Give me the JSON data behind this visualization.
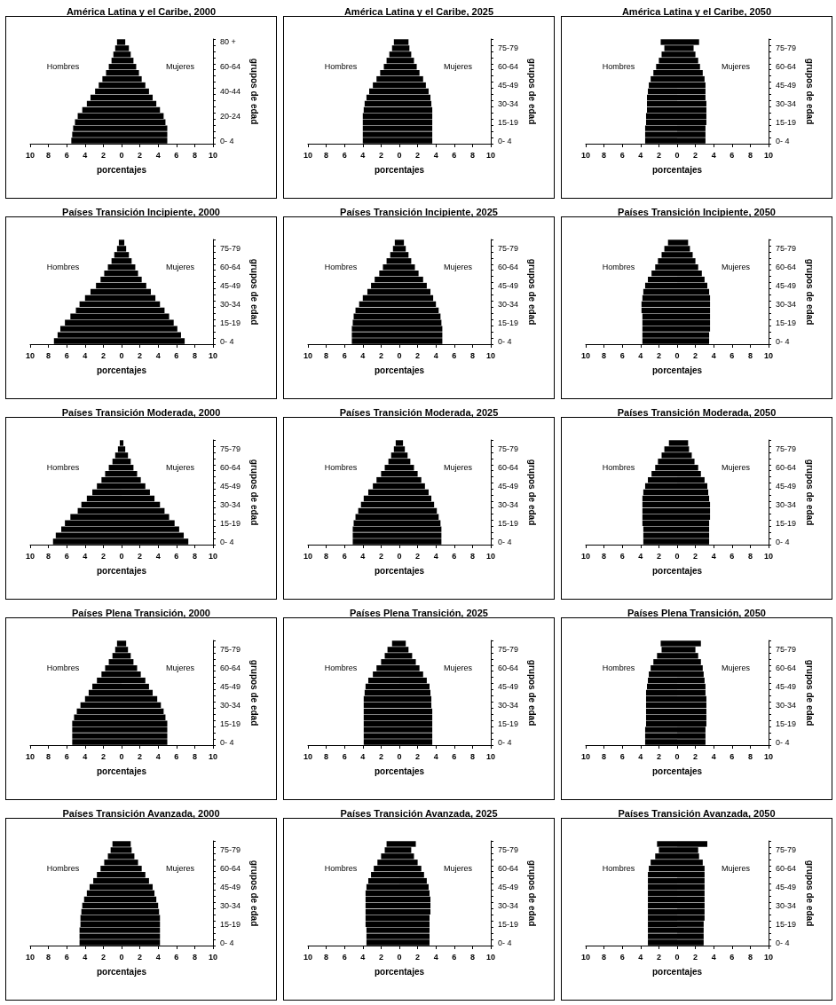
{
  "chart_data": [
    {
      "type": "bar",
      "orientation": "horizontal",
      "stacked": true,
      "title": "América Latina y el Caribe, 2000",
      "xlabel": "porcentajes",
      "ylabel": "grupos de edad",
      "categories": [
        "80 +",
        null,
        null,
        null,
        "60-64",
        null,
        null,
        null,
        "40-44",
        null,
        null,
        null,
        "20-24",
        null,
        null,
        null,
        "0- 4"
      ],
      "xlim": [
        -10,
        10
      ],
      "xticks": [
        {
          "value": -10,
          "label": "10"
        },
        {
          "value": -8,
          "label": "8"
        },
        {
          "value": -6,
          "label": "6"
        },
        {
          "value": -4,
          "label": "4"
        },
        {
          "value": -2,
          "label": "2"
        },
        0,
        2,
        4,
        6,
        8,
        10
      ],
      "series": [
        {
          "name": "Hombres",
          "color": "#000000",
          "values": [
            -0.5,
            -0.7,
            -0.9,
            -1.1,
            -1.4,
            -1.7,
            -2.1,
            -2.5,
            -2.9,
            -3.4,
            -3.8,
            -4.3,
            -4.8,
            -5.1,
            -5.3,
            -5.4,
            -5.5
          ]
        },
        {
          "name": "Mujeres",
          "color": "#000000",
          "values": [
            0.4,
            0.8,
            1.0,
            1.3,
            1.6,
            1.9,
            2.2,
            2.6,
            3.0,
            3.4,
            3.8,
            4.2,
            4.6,
            4.8,
            5.0,
            5.0,
            5.0
          ]
        }
      ]
    },
    {
      "type": "bar",
      "orientation": "horizontal",
      "stacked": true,
      "title": "América Latina y el Caribe, 2025",
      "xlabel": "porcentajes",
      "ylabel": "grupos de edad",
      "categories": [
        null,
        "75-79",
        null,
        null,
        "60-64",
        null,
        null,
        "45-49",
        null,
        null,
        "30-34",
        null,
        null,
        "15-19",
        null,
        null,
        "0- 4"
      ],
      "xlim": [
        -10,
        10
      ],
      "xticks": [
        {
          "value": -10,
          "label": "10"
        },
        {
          "value": -8,
          "label": "8"
        },
        {
          "value": -6,
          "label": "6"
        },
        {
          "value": -4,
          "label": "4"
        },
        {
          "value": -2,
          "label": "2"
        },
        0,
        2,
        4,
        6,
        8,
        10
      ],
      "series": [
        {
          "name": "Hombres",
          "color": "#000000",
          "values": [
            -0.6,
            -0.8,
            -1.1,
            -1.4,
            -1.7,
            -2.1,
            -2.5,
            -2.9,
            -3.3,
            -3.6,
            -3.8,
            -3.9,
            -4.0,
            -4.0,
            -4.0,
            -4.0,
            -4.0
          ]
        },
        {
          "name": "Mujeres",
          "color": "#000000",
          "values": [
            1.0,
            1.1,
            1.3,
            1.6,
            1.9,
            2.2,
            2.6,
            2.9,
            3.2,
            3.4,
            3.5,
            3.6,
            3.6,
            3.6,
            3.6,
            3.6,
            3.6
          ]
        }
      ]
    },
    {
      "type": "bar",
      "orientation": "horizontal",
      "stacked": true,
      "title": "América Latina y el Caribe, 2050",
      "xlabel": "porcentajes",
      "ylabel": "grupos de edad",
      "categories": [
        null,
        "75-79",
        null,
        null,
        "60-64",
        null,
        null,
        "45-49",
        null,
        null,
        "30-34",
        null,
        null,
        "15-19",
        null,
        null,
        "0- 4"
      ],
      "xlim": [
        -10,
        10
      ],
      "xticks": [
        {
          "value": -10,
          "label": "10"
        },
        {
          "value": -8,
          "label": "8"
        },
        {
          "value": -6,
          "label": "6"
        },
        {
          "value": -4,
          "label": "4"
        },
        {
          "value": -2,
          "label": "2"
        },
        0,
        2,
        4,
        6,
        8,
        10
      ],
      "series": [
        {
          "name": "Hombres",
          "color": "#000000",
          "values": [
            -1.8,
            -1.4,
            -1.7,
            -2.0,
            -2.3,
            -2.6,
            -2.9,
            -3.1,
            -3.2,
            -3.3,
            -3.3,
            -3.3,
            -3.4,
            -3.4,
            -3.5,
            -3.5,
            -3.5
          ]
        },
        {
          "name": "Mujeres",
          "color": "#000000",
          "values": [
            2.4,
            1.8,
            2.0,
            2.3,
            2.5,
            2.8,
            3.0,
            3.1,
            3.1,
            3.1,
            3.2,
            3.2,
            3.2,
            3.2,
            3.1,
            3.1,
            3.1
          ]
        }
      ]
    },
    {
      "type": "bar",
      "orientation": "horizontal",
      "stacked": true,
      "title": "Países Transición Incipiente, 2000",
      "xlabel": "porcentajes",
      "ylabel": "grupos de edad",
      "categories": [
        null,
        "75-79",
        null,
        null,
        "60-64",
        null,
        null,
        "45-49",
        null,
        null,
        "30-34",
        null,
        null,
        "15-19",
        null,
        null,
        "0- 4"
      ],
      "xlim": [
        -10,
        10
      ],
      "xticks": [
        {
          "value": -10,
          "label": "10"
        },
        {
          "value": -8,
          "label": "8"
        },
        {
          "value": -6,
          "label": "6"
        },
        {
          "value": -4,
          "label": "4"
        },
        {
          "value": -2,
          "label": "2"
        },
        0,
        2,
        4,
        6,
        8,
        10
      ],
      "series": [
        {
          "name": "Hombres",
          "color": "#000000",
          "values": [
            -0.3,
            -0.5,
            -0.8,
            -1.1,
            -1.5,
            -1.9,
            -2.3,
            -2.8,
            -3.4,
            -4.0,
            -4.6,
            -5.0,
            -5.6,
            -6.2,
            -6.7,
            -7.0,
            -7.4
          ]
        },
        {
          "name": "Mujeres",
          "color": "#000000",
          "values": [
            0.3,
            0.5,
            0.8,
            1.1,
            1.5,
            1.8,
            2.2,
            2.7,
            3.2,
            3.7,
            4.2,
            4.7,
            5.2,
            5.7,
            6.1,
            6.5,
            6.9
          ]
        }
      ]
    },
    {
      "type": "bar",
      "orientation": "horizontal",
      "stacked": true,
      "title": "Países Transición Incipiente, 2025",
      "xlabel": "porcentajes",
      "ylabel": "grupos de edad",
      "categories": [
        null,
        "75-79",
        null,
        null,
        "60-64",
        null,
        null,
        "45-49",
        null,
        null,
        "30-34",
        null,
        null,
        "15-19",
        null,
        null,
        "0- 4"
      ],
      "xlim": [
        -10,
        10
      ],
      "xticks": [
        {
          "value": -10,
          "label": "10"
        },
        {
          "value": -8,
          "label": "8"
        },
        {
          "value": -6,
          "label": "6"
        },
        {
          "value": -4,
          "label": "4"
        },
        {
          "value": -2,
          "label": "2"
        },
        0,
        2,
        4,
        6,
        8,
        10
      ],
      "series": [
        {
          "name": "Hombres",
          "color": "#000000",
          "values": [
            -0.5,
            -0.7,
            -1.0,
            -1.4,
            -1.8,
            -2.2,
            -2.7,
            -3.1,
            -3.5,
            -4.0,
            -4.4,
            -4.8,
            -5.0,
            -5.1,
            -5.2,
            -5.2,
            -5.2
          ]
        },
        {
          "name": "Mujeres",
          "color": "#000000",
          "values": [
            0.5,
            0.7,
            1.0,
            1.3,
            1.7,
            2.1,
            2.6,
            3.0,
            3.4,
            3.7,
            4.0,
            4.3,
            4.5,
            4.6,
            4.7,
            4.7,
            4.7
          ]
        }
      ]
    },
    {
      "type": "bar",
      "orientation": "horizontal",
      "stacked": true,
      "title": "Países Transición Incipiente, 2050",
      "xlabel": "porcentajes",
      "ylabel": "grupos de edad",
      "categories": [
        null,
        "75-79",
        null,
        null,
        "60-64",
        null,
        null,
        "45-49",
        null,
        null,
        "30-34",
        null,
        null,
        "15-19",
        null,
        null,
        "0- 4"
      ],
      "xlim": [
        -10,
        10
      ],
      "xticks": [
        {
          "value": -10,
          "label": "10"
        },
        {
          "value": -8,
          "label": "8"
        },
        {
          "value": -6,
          "label": "6"
        },
        {
          "value": -4,
          "label": "4"
        },
        {
          "value": -2,
          "label": "2"
        },
        0,
        2,
        4,
        6,
        8,
        10
      ],
      "series": [
        {
          "name": "Hombres",
          "color": "#000000",
          "values": [
            -1.0,
            -1.4,
            -1.7,
            -2.1,
            -2.4,
            -2.8,
            -3.2,
            -3.5,
            -3.7,
            -3.8,
            -3.9,
            -3.9,
            -3.8,
            -3.8,
            -3.8,
            -3.8,
            -3.8
          ]
        },
        {
          "name": "Mujeres",
          "color": "#000000",
          "values": [
            1.2,
            1.4,
            1.7,
            2.0,
            2.3,
            2.7,
            3.0,
            3.3,
            3.5,
            3.6,
            3.6,
            3.6,
            3.6,
            3.6,
            3.6,
            3.5,
            3.5
          ]
        }
      ]
    },
    {
      "type": "bar",
      "orientation": "horizontal",
      "stacked": true,
      "title": "Países Transición Moderada, 2000",
      "xlabel": "porcentajes",
      "ylabel": "grupos de edad",
      "categories": [
        null,
        "75-79",
        null,
        null,
        "60-64",
        null,
        null,
        "45-49",
        null,
        null,
        "30-34",
        null,
        null,
        "15-19",
        null,
        null,
        "0- 4"
      ],
      "xlim": [
        -10,
        10
      ],
      "xticks": [
        {
          "value": -10,
          "label": "10"
        },
        {
          "value": -8,
          "label": "8"
        },
        {
          "value": -6,
          "label": "6"
        },
        {
          "value": -4,
          "label": "4"
        },
        {
          "value": -2,
          "label": "2"
        },
        0,
        2,
        4,
        6,
        8,
        10
      ],
      "series": [
        {
          "name": "Hombres",
          "color": "#000000",
          "values": [
            -0.2,
            -0.4,
            -0.7,
            -1.0,
            -1.4,
            -1.8,
            -2.2,
            -2.7,
            -3.2,
            -3.8,
            -4.4,
            -4.8,
            -5.6,
            -6.2,
            -6.6,
            -7.2,
            -7.5
          ]
        },
        {
          "name": "Mujeres",
          "color": "#000000",
          "values": [
            0.2,
            0.4,
            0.7,
            1.0,
            1.3,
            1.7,
            2.1,
            2.6,
            3.1,
            3.6,
            4.2,
            4.7,
            5.2,
            5.8,
            6.3,
            6.8,
            7.3
          ]
        }
      ]
    },
    {
      "type": "bar",
      "orientation": "horizontal",
      "stacked": true,
      "title": "Países Transición Moderada, 2025",
      "xlabel": "porcentajes",
      "ylabel": "grupos de edad",
      "categories": [
        null,
        "75-79",
        null,
        null,
        "60-64",
        null,
        null,
        "45-49",
        null,
        null,
        "30-34",
        null,
        null,
        "15-19",
        null,
        null,
        "0- 4"
      ],
      "xlim": [
        -10,
        10
      ],
      "xticks": [
        {
          "value": -10,
          "label": "10"
        },
        {
          "value": -8,
          "label": "8"
        },
        {
          "value": -6,
          "label": "6"
        },
        {
          "value": -4,
          "label": "4"
        },
        {
          "value": -2,
          "label": "2"
        },
        0,
        2,
        4,
        6,
        8,
        10
      ],
      "series": [
        {
          "name": "Hombres",
          "color": "#000000",
          "values": [
            -0.4,
            -0.6,
            -0.9,
            -1.2,
            -1.6,
            -2.0,
            -2.5,
            -2.9,
            -3.4,
            -3.9,
            -4.2,
            -4.5,
            -4.8,
            -5.0,
            -5.1,
            -5.1,
            -5.1
          ]
        },
        {
          "name": "Mujeres",
          "color": "#000000",
          "values": [
            0.4,
            0.6,
            0.9,
            1.2,
            1.6,
            2.0,
            2.4,
            2.8,
            3.2,
            3.5,
            3.8,
            4.1,
            4.3,
            4.5,
            4.6,
            4.6,
            4.6
          ]
        }
      ]
    },
    {
      "type": "bar",
      "orientation": "horizontal",
      "stacked": true,
      "title": "Países Transición Moderada, 2050",
      "xlabel": "porcentajes",
      "ylabel": "grupos de edad",
      "categories": [
        null,
        "75-79",
        null,
        null,
        "60-64",
        null,
        null,
        "45-49",
        null,
        null,
        "30-34",
        null,
        null,
        "15-19",
        null,
        null,
        "0- 4"
      ],
      "xlim": [
        -10,
        10
      ],
      "xticks": [
        {
          "value": -10,
          "label": "10"
        },
        {
          "value": -8,
          "label": "8"
        },
        {
          "value": -6,
          "label": "6"
        },
        {
          "value": -4,
          "label": "4"
        },
        {
          "value": -2,
          "label": "2"
        },
        0,
        2,
        4,
        6,
        8,
        10
      ],
      "series": [
        {
          "name": "Hombres",
          "color": "#000000",
          "values": [
            -0.9,
            -1.4,
            -1.7,
            -2.1,
            -2.4,
            -2.8,
            -3.2,
            -3.5,
            -3.7,
            -3.8,
            -3.8,
            -3.8,
            -3.8,
            -3.8,
            -3.7,
            -3.7,
            -3.7
          ]
        },
        {
          "name": "Mujeres",
          "color": "#000000",
          "values": [
            1.2,
            1.3,
            1.6,
            1.9,
            2.3,
            2.6,
            3.0,
            3.3,
            3.4,
            3.5,
            3.6,
            3.6,
            3.6,
            3.5,
            3.5,
            3.5,
            3.5
          ]
        }
      ]
    },
    {
      "type": "bar",
      "orientation": "horizontal",
      "stacked": true,
      "title": "Países Plena Transición, 2000",
      "xlabel": "porcentajes",
      "ylabel": "grupos de edad",
      "categories": [
        null,
        "75-79",
        null,
        null,
        "60-64",
        null,
        null,
        "45-49",
        null,
        null,
        "30-34",
        null,
        null,
        "15-19",
        null,
        null,
        "0- 4"
      ],
      "xlim": [
        -10,
        10
      ],
      "xticks": [
        {
          "value": -10,
          "label": "10"
        },
        {
          "value": -8,
          "label": "8"
        },
        {
          "value": -6,
          "label": "6"
        },
        {
          "value": -4,
          "label": "4"
        },
        {
          "value": -2,
          "label": "2"
        },
        0,
        2,
        4,
        6,
        8,
        10
      ],
      "series": [
        {
          "name": "Hombres",
          "color": "#000000",
          "values": [
            -0.5,
            -0.7,
            -1.0,
            -1.4,
            -1.8,
            -2.2,
            -2.7,
            -3.2,
            -3.6,
            -4.0,
            -4.5,
            -4.9,
            -5.2,
            -5.4,
            -5.4,
            -5.4,
            -5.4
          ]
        },
        {
          "name": "Mujeres",
          "color": "#000000",
          "values": [
            0.5,
            0.7,
            1.0,
            1.3,
            1.7,
            2.1,
            2.6,
            3.0,
            3.4,
            3.9,
            4.3,
            4.6,
            4.8,
            5.0,
            5.0,
            5.0,
            5.0
          ]
        }
      ]
    },
    {
      "type": "bar",
      "orientation": "horizontal",
      "stacked": true,
      "title": "Países Plena Transición, 2025",
      "xlabel": "porcentajes",
      "ylabel": "grupos de edad",
      "categories": [
        null,
        "75-79",
        null,
        null,
        "60-64",
        null,
        null,
        "45-49",
        null,
        null,
        "30-34",
        null,
        null,
        "15-19",
        null,
        null,
        "0- 4"
      ],
      "xlim": [
        -10,
        10
      ],
      "xticks": [
        {
          "value": -10,
          "label": "10"
        },
        {
          "value": -8,
          "label": "8"
        },
        {
          "value": -6,
          "label": "6"
        },
        {
          "value": -4,
          "label": "4"
        },
        {
          "value": -2,
          "label": "2"
        },
        0,
        2,
        4,
        6,
        8,
        10
      ],
      "series": [
        {
          "name": "Hombres",
          "color": "#000000",
          "values": [
            -0.8,
            -1.3,
            -1.6,
            -2.0,
            -2.5,
            -2.9,
            -3.4,
            -3.7,
            -3.8,
            -3.9,
            -3.9,
            -3.9,
            -3.9,
            -3.9,
            -3.9,
            -3.9,
            -3.9
          ]
        },
        {
          "name": "Mujeres",
          "color": "#000000",
          "values": [
            0.7,
            1.0,
            1.4,
            1.8,
            2.2,
            2.6,
            3.0,
            3.3,
            3.4,
            3.5,
            3.5,
            3.6,
            3.6,
            3.6,
            3.6,
            3.6,
            3.6
          ]
        }
      ]
    },
    {
      "type": "bar",
      "orientation": "horizontal",
      "stacked": true,
      "title": "Países Plena Transición, 2050",
      "xlabel": "porcentajes",
      "ylabel": "grupos de edad",
      "categories": [
        null,
        "75-79",
        null,
        null,
        "60-64",
        null,
        null,
        "45-49",
        null,
        null,
        "30-34",
        null,
        null,
        "15-19",
        null,
        null,
        "0- 4"
      ],
      "xlim": [
        -10,
        10
      ],
      "xticks": [
        {
          "value": -10,
          "label": "10"
        },
        {
          "value": -8,
          "label": "8"
        },
        {
          "value": -6,
          "label": "6"
        },
        {
          "value": -4,
          "label": "4"
        },
        {
          "value": -2,
          "label": "2"
        },
        0,
        2,
        4,
        6,
        8,
        10
      ],
      "series": [
        {
          "name": "Hombres",
          "color": "#000000",
          "values": [
            -1.8,
            -1.7,
            -2.2,
            -2.6,
            -2.9,
            -3.1,
            -3.2,
            -3.3,
            -3.4,
            -3.4,
            -3.4,
            -3.4,
            -3.4,
            -3.4,
            -3.5,
            -3.5,
            -3.5
          ]
        },
        {
          "name": "Mujeres",
          "color": "#000000",
          "values": [
            2.6,
            2.0,
            2.3,
            2.6,
            2.8,
            2.9,
            3.0,
            3.1,
            3.1,
            3.2,
            3.2,
            3.2,
            3.2,
            3.2,
            3.1,
            3.1,
            3.1
          ]
        }
      ]
    },
    {
      "type": "bar",
      "orientation": "horizontal",
      "stacked": true,
      "title": "Países Transición Avanzada, 2000",
      "xlabel": "porcentajes",
      "ylabel": "grupos de edad",
      "categories": [
        null,
        "75-79",
        null,
        null,
        "60-64",
        null,
        null,
        "45-49",
        null,
        null,
        "30-34",
        null,
        null,
        "15-19",
        null,
        null,
        "0- 4"
      ],
      "xlim": [
        -10,
        10
      ],
      "xticks": [
        {
          "value": -10,
          "label": "10"
        },
        {
          "value": -8,
          "label": "8"
        },
        {
          "value": -6,
          "label": "6"
        },
        {
          "value": -4,
          "label": "4"
        },
        {
          "value": -2,
          "label": "2"
        },
        0,
        2,
        4,
        6,
        8,
        10
      ],
      "series": [
        {
          "name": "Hombres",
          "color": "#000000",
          "values": [
            -1.0,
            -1.2,
            -1.5,
            -1.9,
            -2.3,
            -2.7,
            -3.1,
            -3.5,
            -3.8,
            -4.1,
            -4.3,
            -4.4,
            -4.5,
            -4.5,
            -4.6,
            -4.6,
            -4.6
          ]
        },
        {
          "name": "Mujeres",
          "color": "#000000",
          "values": [
            1.0,
            1.1,
            1.4,
            1.8,
            2.2,
            2.6,
            3.0,
            3.4,
            3.6,
            3.8,
            4.0,
            4.1,
            4.2,
            4.2,
            4.2,
            4.2,
            4.2
          ]
        }
      ]
    },
    {
      "type": "bar",
      "orientation": "horizontal",
      "stacked": true,
      "title": "Países Transición Avanzada, 2025",
      "xlabel": "porcentajes",
      "ylabel": "grupos de edad",
      "categories": [
        null,
        "75-79",
        null,
        null,
        "60-64",
        null,
        null,
        "45-49",
        null,
        null,
        "30-34",
        null,
        null,
        "15-19",
        null,
        null,
        "0- 4"
      ],
      "xlim": [
        -10,
        10
      ],
      "xticks": [
        {
          "value": -10,
          "label": "10"
        },
        {
          "value": -8,
          "label": "8"
        },
        {
          "value": -6,
          "label": "6"
        },
        {
          "value": -4,
          "label": "4"
        },
        {
          "value": -2,
          "label": "2"
        },
        0,
        2,
        4,
        6,
        8,
        10
      ],
      "series": [
        {
          "name": "Hombres",
          "color": "#000000",
          "values": [
            -1.4,
            -1.6,
            -2.0,
            -2.4,
            -2.8,
            -3.1,
            -3.4,
            -3.6,
            -3.7,
            -3.7,
            -3.7,
            -3.7,
            -3.7,
            -3.7,
            -3.6,
            -3.6,
            -3.6
          ]
        },
        {
          "name": "Mujeres",
          "color": "#000000",
          "values": [
            1.8,
            1.3,
            1.6,
            2.0,
            2.4,
            2.7,
            3.0,
            3.2,
            3.3,
            3.4,
            3.4,
            3.4,
            3.3,
            3.3,
            3.3,
            3.3,
            3.3
          ]
        }
      ]
    },
    {
      "type": "bar",
      "orientation": "horizontal",
      "stacked": true,
      "title": "Países Transición Avanzada, 2050",
      "xlabel": "porcentajes",
      "ylabel": "grupos de edad",
      "categories": [
        null,
        "75-79",
        null,
        null,
        "60-64",
        null,
        null,
        "45-49",
        null,
        null,
        "30-34",
        null,
        null,
        "15-19",
        null,
        null,
        "0- 4"
      ],
      "xlim": [
        -10,
        10
      ],
      "xticks": [
        {
          "value": -10,
          "label": "10"
        },
        {
          "value": -8,
          "label": "8"
        },
        {
          "value": -6,
          "label": "6"
        },
        {
          "value": -4,
          "label": "4"
        },
        {
          "value": -2,
          "label": "2"
        },
        0,
        2,
        4,
        6,
        8,
        10
      ],
      "series": [
        {
          "name": "Hombres",
          "color": "#000000",
          "values": [
            -2.2,
            -2.0,
            -2.4,
            -2.9,
            -3.1,
            -3.2,
            -3.2,
            -3.2,
            -3.2,
            -3.2,
            -3.2,
            -3.2,
            -3.2,
            -3.2,
            -3.2,
            -3.2,
            -3.2
          ]
        },
        {
          "name": "Mujeres",
          "color": "#000000",
          "values": [
            3.3,
            2.3,
            2.4,
            2.8,
            3.0,
            3.0,
            3.0,
            3.0,
            3.0,
            3.0,
            3.0,
            3.0,
            3.0,
            2.9,
            2.9,
            2.9,
            2.9
          ]
        }
      ]
    }
  ]
}
